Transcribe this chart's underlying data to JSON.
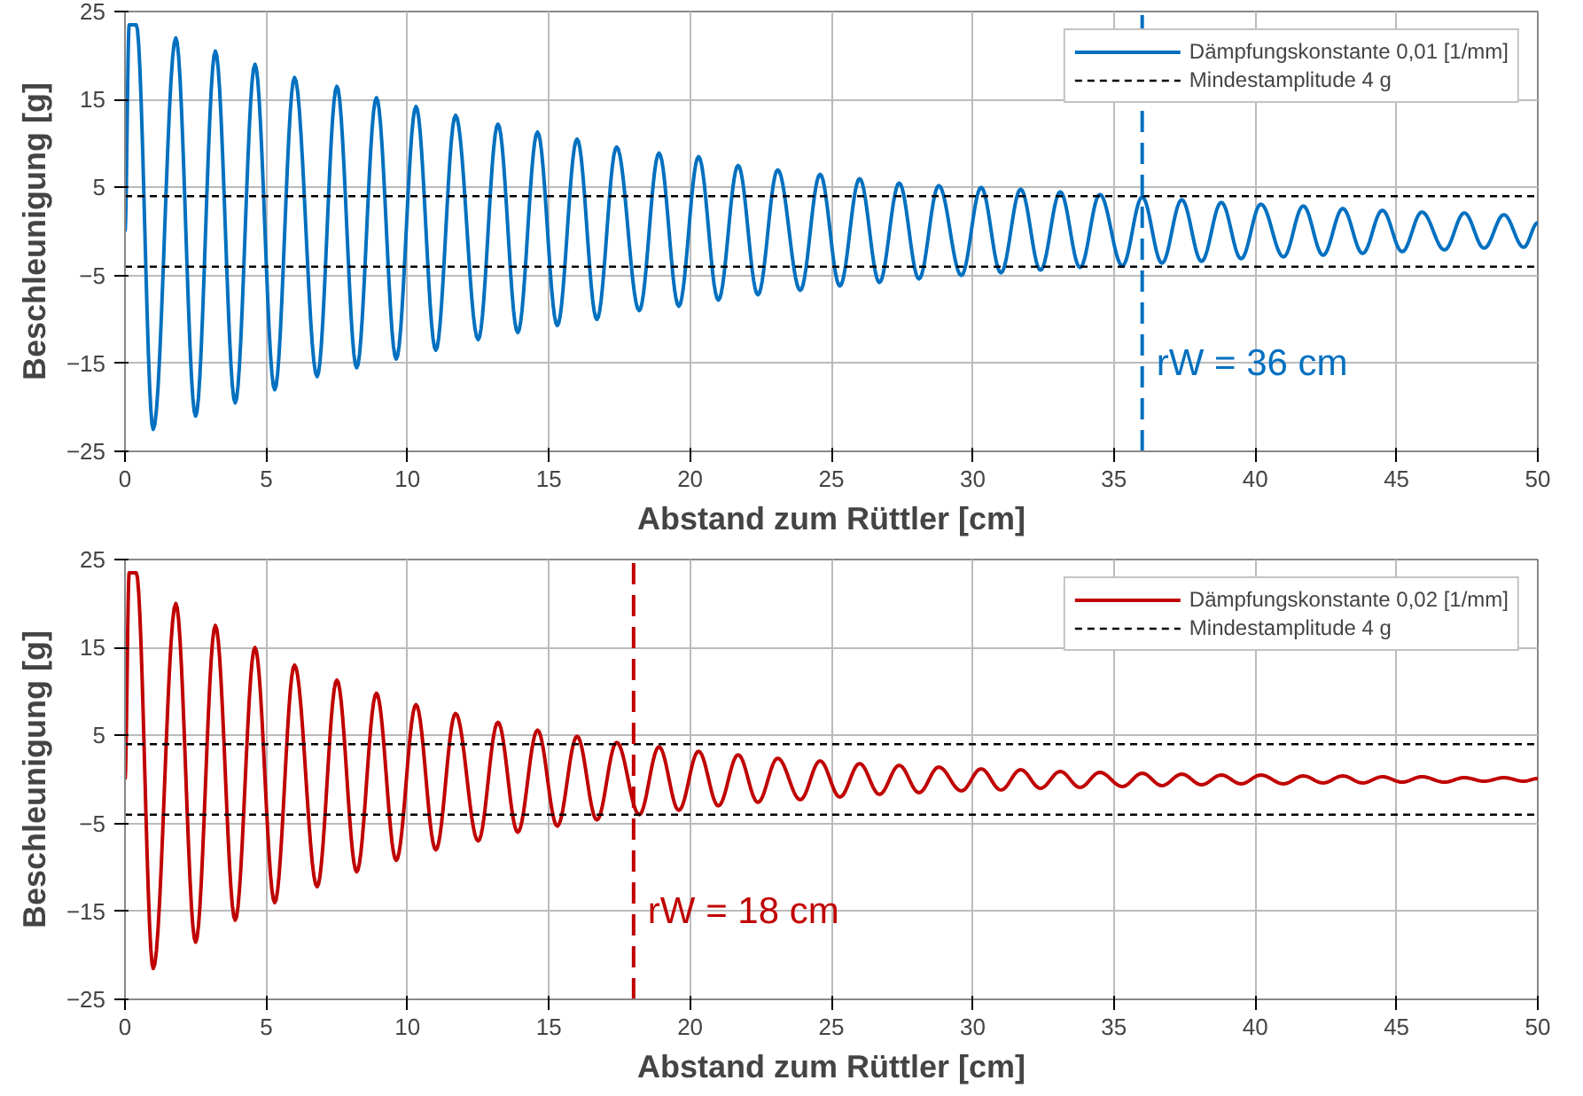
{
  "chart_data": [
    {
      "type": "line",
      "xlabel": "Abstand zum Rüttler [cm]",
      "ylabel": "Beschleunigung [g]",
      "xlim": [
        0,
        50
      ],
      "ylim": [
        -25,
        25
      ],
      "xticks": [
        0,
        5,
        10,
        15,
        20,
        25,
        30,
        35,
        40,
        45,
        50
      ],
      "yticks": [
        -25,
        -15,
        -5,
        5,
        15,
        25
      ],
      "grid": true,
      "legend": "top right",
      "series": [
        {
          "name": "Dämpfungskonstante 0,01 [1/mm]",
          "color": "#0070c0",
          "x": [
            0,
            0.15,
            0.4,
            1.0,
            1.8,
            2.5,
            3.2,
            3.9,
            4.6,
            5.3,
            6.0,
            6.8,
            7.5,
            8.2,
            8.9,
            9.6,
            10.3,
            11.0,
            11.7,
            12.5,
            13.2,
            13.9,
            14.6,
            15.3,
            16.0,
            16.7,
            17.4,
            18.2,
            18.9,
            19.6,
            20.3,
            21.0,
            21.7,
            22.4,
            23.1,
            23.9,
            24.6,
            25.3,
            26.0,
            26.7,
            27.4,
            28.1,
            28.8,
            29.6,
            30.3,
            31.0,
            31.7,
            32.4,
            33.1,
            33.8,
            34.5,
            35.3,
            36.0,
            36.7,
            37.4,
            38.1,
            38.8,
            39.5,
            40.2,
            41.0,
            41.7,
            42.4,
            43.1,
            43.8,
            44.5,
            45.2,
            45.9,
            46.7,
            47.4,
            48.1,
            48.8,
            49.5,
            50
          ],
          "values": [
            0,
            23.5,
            23.5,
            -22.5,
            22,
            -21,
            20.5,
            -19.5,
            19,
            -18,
            17.5,
            -16.5,
            16.5,
            -15.5,
            15.2,
            -14.5,
            14.2,
            -13.5,
            13.2,
            -12.3,
            12.2,
            -11.5,
            11.3,
            -10.7,
            10.5,
            -10,
            9.6,
            -9,
            8.9,
            -8.5,
            8.5,
            -7.8,
            7.5,
            -7.2,
            7,
            -6.7,
            6.5,
            -6.2,
            6,
            -5.8,
            5.5,
            -5.4,
            5.2,
            -5,
            5,
            -4.7,
            4.8,
            -4.4,
            4.5,
            -4.1,
            4.2,
            -3.9,
            3.9,
            -3.6,
            3.6,
            -3.4,
            3.3,
            -3.1,
            3.1,
            -2.9,
            2.9,
            -2.7,
            2.6,
            -2.5,
            2.4,
            -2.3,
            2.2,
            -2.1,
            2.1,
            -1.9,
            1.9,
            -1.8,
            1
          ]
        }
      ],
      "ref_lines": [
        {
          "axis": "y",
          "value": 4,
          "label": "Mindestamplitude 4 g",
          "color": "#000000",
          "line_style": "dashed"
        },
        {
          "axis": "y",
          "value": -4,
          "color": "#000000",
          "line_style": "dashed"
        },
        {
          "axis": "x",
          "value": 36,
          "label": "rW = 36 cm",
          "color": "#0070c0",
          "line_style": "dashed"
        }
      ]
    },
    {
      "type": "line",
      "xlabel": "Abstand zum Rüttler [cm]",
      "ylabel": "Beschleunigung [g]",
      "xlim": [
        0,
        50
      ],
      "ylim": [
        -25,
        25
      ],
      "xticks": [
        0,
        5,
        10,
        15,
        20,
        25,
        30,
        35,
        40,
        45,
        50
      ],
      "yticks": [
        -25,
        -15,
        -5,
        5,
        15,
        25
      ],
      "grid": true,
      "legend": "top right",
      "series": [
        {
          "name": "Dämpfungskonstante 0,02 [1/mm]",
          "color": "#c00000",
          "x": [
            0,
            0.15,
            0.4,
            1.0,
            1.8,
            2.5,
            3.2,
            3.9,
            4.6,
            5.3,
            6.0,
            6.8,
            7.5,
            8.2,
            8.9,
            9.6,
            10.3,
            11.0,
            11.7,
            12.5,
            13.2,
            13.9,
            14.6,
            15.3,
            16.0,
            16.7,
            17.4,
            18.2,
            18.9,
            19.6,
            20.3,
            21.0,
            21.7,
            22.4,
            23.1,
            23.9,
            24.6,
            25.3,
            26.0,
            26.7,
            27.4,
            28.1,
            28.8,
            29.6,
            30.3,
            31.0,
            31.7,
            32.4,
            33.1,
            33.8,
            34.5,
            35.3,
            36.0,
            36.7,
            37.4,
            38.1,
            38.8,
            39.5,
            40.2,
            41.0,
            41.7,
            42.4,
            43.1,
            43.8,
            44.5,
            45.2,
            45.9,
            46.7,
            47.4,
            48.1,
            48.8,
            49.5,
            50
          ],
          "values": [
            0,
            23.5,
            23.5,
            -21.5,
            20,
            -18.5,
            17.5,
            -16,
            15,
            -14,
            13,
            -12.2,
            11.3,
            -10.5,
            9.8,
            -9.2,
            8.5,
            -8,
            7.5,
            -7,
            6.5,
            -6,
            5.6,
            -5.3,
            4.9,
            -4.6,
            4.2,
            -4,
            3.7,
            -3.5,
            3.2,
            -3,
            2.8,
            -2.6,
            2.4,
            -2.3,
            2.1,
            -2,
            1.8,
            -1.7,
            1.6,
            -1.5,
            1.4,
            -1.3,
            1.2,
            -1.2,
            1.1,
            -1,
            0.9,
            -0.9,
            0.8,
            -0.8,
            0.7,
            -0.7,
            0.6,
            -0.6,
            0.5,
            -0.5,
            0.5,
            -0.5,
            0.4,
            -0.4,
            0.4,
            -0.4,
            0.3,
            -0.3,
            0.3,
            -0.3,
            0.2,
            -0.2,
            0.2,
            -0.2,
            0.1
          ]
        }
      ],
      "ref_lines": [
        {
          "axis": "y",
          "value": 4,
          "label": "Mindestamplitude 4 g",
          "color": "#000000",
          "line_style": "dashed"
        },
        {
          "axis": "y",
          "value": -4,
          "color": "#000000",
          "line_style": "dashed"
        },
        {
          "axis": "x",
          "value": 18,
          "label": "rW = 18 cm",
          "color": "#c00000",
          "line_style": "dashed"
        }
      ]
    }
  ]
}
